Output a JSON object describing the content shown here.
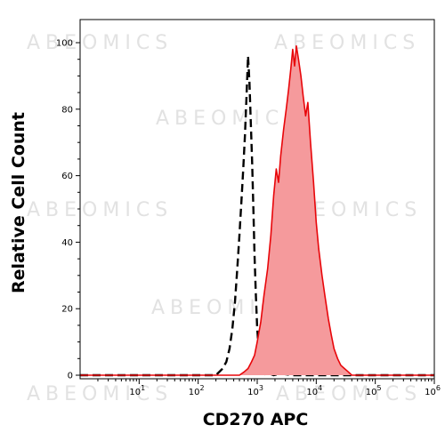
{
  "watermark": "ABEOMICS",
  "chart_data": {
    "type": "area",
    "xlabel": "CD270 APC",
    "ylabel": "Relative Cell Count",
    "x_scale": "log",
    "xlim": [
      1,
      1000000
    ],
    "ylim": [
      0,
      100
    ],
    "x_ticks": [
      {
        "value": 10,
        "base": "10",
        "exp": "1"
      },
      {
        "value": 100,
        "base": "10",
        "exp": "2"
      },
      {
        "value": 1000,
        "base": "10",
        "exp": "3"
      },
      {
        "value": 10000,
        "base": "10",
        "exp": "4"
      },
      {
        "value": 100000,
        "base": "10",
        "exp": "5"
      },
      {
        "value": 1000000,
        "base": "10",
        "exp": "6"
      }
    ],
    "y_ticks": [
      0,
      20,
      40,
      60,
      80,
      100
    ],
    "grid": false,
    "series": [
      {
        "style": "dashed-black",
        "color": "#000000",
        "x": [
          1,
          200,
          260,
          300,
          340,
          380,
          420,
          460,
          500,
          540,
          580,
          620,
          660,
          700,
          740,
          780,
          820,
          860,
          900,
          950,
          1000,
          1060,
          1120,
          1200,
          1300,
          1400,
          1600,
          1900,
          2500,
          4000,
          1000000
        ],
        "values": [
          0,
          0,
          2,
          4,
          8,
          14,
          22,
          32,
          42,
          52,
          62,
          72,
          84,
          96,
          88,
          76,
          64,
          50,
          36,
          24,
          14,
          8,
          4,
          2,
          0.5,
          0,
          0.5,
          0,
          0.5,
          0,
          0
        ]
      },
      {
        "style": "filled-red",
        "color": "#e8060a",
        "fill": "#f59a9c",
        "x": [
          1,
          500,
          600,
          700,
          800,
          900,
          1000,
          1150,
          1300,
          1500,
          1700,
          1900,
          2100,
          2300,
          2500,
          2800,
          3100,
          3400,
          3700,
          4000,
          4300,
          4600,
          5000,
          5500,
          6000,
          6600,
          7200,
          8000,
          9000,
          10000,
          11000,
          12500,
          14000,
          16000,
          18000,
          20000,
          23000,
          26000,
          30000,
          35000,
          40000,
          1000000
        ],
        "values": [
          0,
          0,
          1,
          2,
          4,
          6,
          10,
          16,
          24,
          32,
          42,
          54,
          62,
          58,
          66,
          74,
          80,
          86,
          92,
          98,
          93,
          99,
          95,
          90,
          84,
          78,
          82,
          70,
          58,
          46,
          38,
          30,
          24,
          17,
          12,
          8,
          5,
          3,
          2,
          1,
          0,
          0
        ]
      }
    ]
  }
}
